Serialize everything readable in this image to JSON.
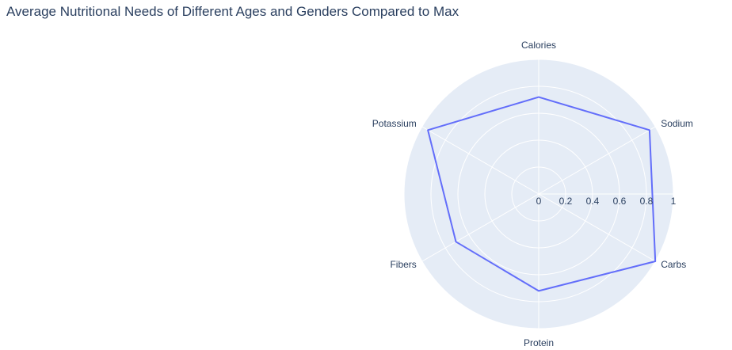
{
  "chart_data": {
    "type": "radar",
    "title": "Average Nutritional Needs of Different Ages and Genders Compared to Max",
    "axes": [
      "Calories",
      "Sodium",
      "Carbs",
      "Protein",
      "Fibers",
      "Potassium"
    ],
    "radial_ticks": [
      "0",
      "0.2",
      "0.4",
      "0.6",
      "0.8",
      "1"
    ],
    "radial_range": [
      0,
      1
    ],
    "grid": true,
    "series": [
      {
        "values": [
          0.72,
          0.95,
          1.0,
          0.72,
          0.71,
          0.95
        ],
        "color": "#636efa"
      }
    ],
    "background_color": "#e5ecf6",
    "grid_color": "#ffffff"
  }
}
